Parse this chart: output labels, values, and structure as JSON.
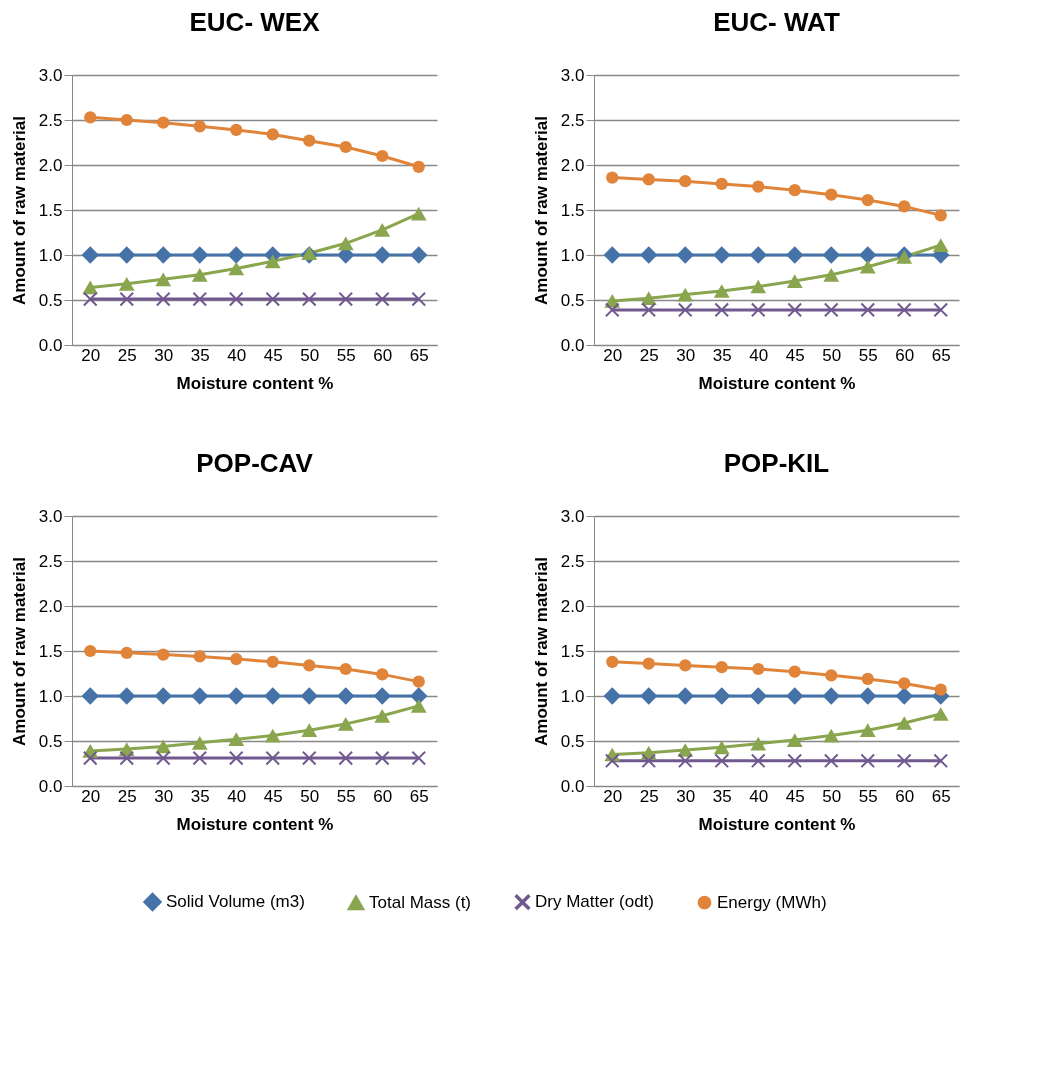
{
  "chart_data": [
    {
      "type": "line",
      "title": "EUC- WEX",
      "xlabel": "Moisture content %",
      "ylabel": "Amount of raw material",
      "categories": [
        "20",
        "25",
        "30",
        "35",
        "40",
        "45",
        "50",
        "55",
        "60",
        "65"
      ],
      "ylim": [
        0,
        3
      ],
      "yticks": [
        {
          "value": 0,
          "label": "0.0"
        },
        {
          "value": 0.5,
          "label": "0.5"
        },
        {
          "value": 1,
          "label": "1.0"
        },
        {
          "value": 1.5,
          "label": "1.5"
        },
        {
          "value": 2,
          "label": "2.0"
        },
        {
          "value": 2.5,
          "label": "2.5"
        },
        {
          "value": 3,
          "label": "3.0"
        }
      ],
      "grid": "y",
      "legend": "bottom",
      "series": [
        {
          "name": "Solid Volume (m3)",
          "color": "#4572a7",
          "marker": "diamond",
          "values": [
            1,
            1,
            1,
            1,
            1,
            1,
            1,
            1,
            1,
            1
          ]
        },
        {
          "name": "Total Mass (t)",
          "color": "#89a54e",
          "marker": "triangle",
          "values": [
            0.64,
            0.68,
            0.73,
            0.78,
            0.85,
            0.93,
            1.02,
            1.13,
            1.28,
            1.46
          ]
        },
        {
          "name": "Dry Matter (odt)",
          "color": "#71588f",
          "marker": "cross",
          "values": [
            0.51,
            0.51,
            0.51,
            0.51,
            0.51,
            0.51,
            0.51,
            0.51,
            0.51,
            0.51
          ]
        },
        {
          "name": "Energy (MWh)",
          "color": "#e0843a",
          "marker": "circle",
          "values": [
            2.53,
            2.5,
            2.47,
            2.43,
            2.39,
            2.34,
            2.27,
            2.2,
            2.1,
            1.98
          ]
        }
      ]
    },
    {
      "type": "line",
      "title": "EUC- WAT",
      "xlabel": "Moisture content %",
      "ylabel": "Amount of raw material",
      "categories": [
        "20",
        "25",
        "30",
        "35",
        "40",
        "45",
        "50",
        "55",
        "60",
        "65"
      ],
      "ylim": [
        0,
        3
      ],
      "yticks": [
        {
          "value": 0,
          "label": "0.0"
        },
        {
          "value": 0.5,
          "label": "0.5"
        },
        {
          "value": 1,
          "label": "1.0"
        },
        {
          "value": 1.5,
          "label": "1.5"
        },
        {
          "value": 2,
          "label": "2.0"
        },
        {
          "value": 2.5,
          "label": "2.5"
        },
        {
          "value": 3,
          "label": "3.0"
        }
      ],
      "grid": "y",
      "legend": "bottom",
      "series": [
        {
          "name": "Solid Volume (m3)",
          "color": "#4572a7",
          "marker": "diamond",
          "values": [
            1,
            1,
            1,
            1,
            1,
            1,
            1,
            1,
            1,
            1
          ]
        },
        {
          "name": "Total Mass (t)",
          "color": "#89a54e",
          "marker": "triangle",
          "values": [
            0.49,
            0.52,
            0.56,
            0.6,
            0.65,
            0.71,
            0.78,
            0.87,
            0.98,
            1.11
          ]
        },
        {
          "name": "Dry Matter (odt)",
          "color": "#71588f",
          "marker": "cross",
          "values": [
            0.39,
            0.39,
            0.39,
            0.39,
            0.39,
            0.39,
            0.39,
            0.39,
            0.39,
            0.39
          ]
        },
        {
          "name": "Energy (MWh)",
          "color": "#e0843a",
          "marker": "circle",
          "values": [
            1.86,
            1.84,
            1.82,
            1.79,
            1.76,
            1.72,
            1.67,
            1.61,
            1.54,
            1.44
          ]
        }
      ]
    },
    {
      "type": "line",
      "title": "POP-CAV",
      "xlabel": "Moisture content %",
      "ylabel": "Amount of raw material",
      "categories": [
        "20",
        "25",
        "30",
        "35",
        "40",
        "45",
        "50",
        "55",
        "60",
        "65"
      ],
      "ylim": [
        0,
        3
      ],
      "yticks": [
        {
          "value": 0,
          "label": "0.0"
        },
        {
          "value": 0.5,
          "label": "0.5"
        },
        {
          "value": 1,
          "label": "1.0"
        },
        {
          "value": 1.5,
          "label": "1.5"
        },
        {
          "value": 2,
          "label": "2.0"
        },
        {
          "value": 2.5,
          "label": "2.5"
        },
        {
          "value": 3,
          "label": "3.0"
        }
      ],
      "grid": "y",
      "legend": "bottom",
      "series": [
        {
          "name": "Solid Volume (m3)",
          "color": "#4572a7",
          "marker": "diamond",
          "values": [
            1,
            1,
            1,
            1,
            1,
            1,
            1,
            1,
            1,
            1
          ]
        },
        {
          "name": "Total Mass (t)",
          "color": "#89a54e",
          "marker": "triangle",
          "values": [
            0.39,
            0.41,
            0.44,
            0.48,
            0.52,
            0.56,
            0.62,
            0.69,
            0.78,
            0.89
          ]
        },
        {
          "name": "Dry Matter (odt)",
          "color": "#71588f",
          "marker": "cross",
          "values": [
            0.31,
            0.31,
            0.31,
            0.31,
            0.31,
            0.31,
            0.31,
            0.31,
            0.31,
            0.31
          ]
        },
        {
          "name": "Energy (MWh)",
          "color": "#e0843a",
          "marker": "circle",
          "values": [
            1.5,
            1.48,
            1.46,
            1.44,
            1.41,
            1.38,
            1.34,
            1.3,
            1.24,
            1.16
          ]
        }
      ]
    },
    {
      "type": "line",
      "title": "POP-KIL",
      "xlabel": "Moisture content %",
      "ylabel": "Amount of raw material",
      "categories": [
        "20",
        "25",
        "30",
        "35",
        "40",
        "45",
        "50",
        "55",
        "60",
        "65"
      ],
      "ylim": [
        0,
        3
      ],
      "yticks": [
        {
          "value": 0,
          "label": "0.0"
        },
        {
          "value": 0.5,
          "label": "0.5"
        },
        {
          "value": 1,
          "label": "1.0"
        },
        {
          "value": 1.5,
          "label": "1.5"
        },
        {
          "value": 2,
          "label": "2.0"
        },
        {
          "value": 2.5,
          "label": "2.5"
        },
        {
          "value": 3,
          "label": "3.0"
        }
      ],
      "grid": "y",
      "legend": "bottom",
      "series": [
        {
          "name": "Solid Volume (m3)",
          "color": "#4572a7",
          "marker": "diamond",
          "values": [
            1,
            1,
            1,
            1,
            1,
            1,
            1,
            1,
            1,
            1
          ]
        },
        {
          "name": "Total Mass (t)",
          "color": "#89a54e",
          "marker": "triangle",
          "values": [
            0.35,
            0.37,
            0.4,
            0.43,
            0.47,
            0.51,
            0.56,
            0.62,
            0.7,
            0.8
          ]
        },
        {
          "name": "Dry Matter (odt)",
          "color": "#71588f",
          "marker": "cross",
          "values": [
            0.28,
            0.28,
            0.28,
            0.28,
            0.28,
            0.28,
            0.28,
            0.28,
            0.28,
            0.28
          ]
        },
        {
          "name": "Energy (MWh)",
          "color": "#e0843a",
          "marker": "circle",
          "values": [
            1.38,
            1.36,
            1.34,
            1.32,
            1.3,
            1.27,
            1.23,
            1.19,
            1.14,
            1.07
          ]
        }
      ]
    }
  ]
}
